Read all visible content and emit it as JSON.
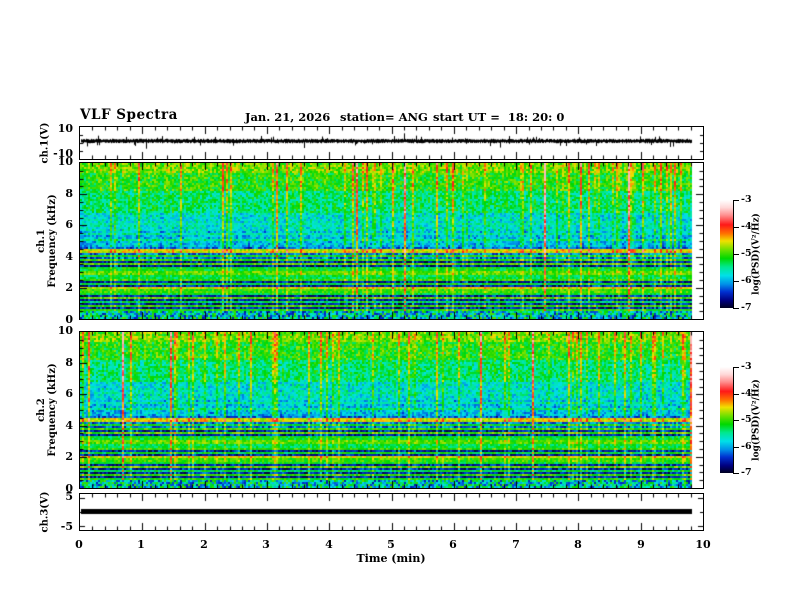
{
  "figure": {
    "title": "VLF Spectra",
    "header": {
      "date": "Jan. 21, 2026",
      "station": "station= ANG",
      "start_ut": "start UT =  18: 20: 0"
    },
    "time_axis": {
      "label": "Time (min)",
      "tick_labels": [
        "0",
        "1",
        "2",
        "3",
        "4",
        "5",
        "6",
        "7",
        "8",
        "9",
        "10"
      ],
      "tick_values": [
        0,
        1,
        2,
        3,
        4,
        5,
        6,
        7,
        8,
        9,
        10
      ]
    },
    "panels": [
      {
        "id": "ch1-voltage",
        "ylabel": "ch.1(V)",
        "ytick_labels": [
          "10",
          "-10"
        ],
        "ytick_values": [
          10,
          -10
        ]
      },
      {
        "id": "ch1-spectrogram",
        "ylabel_lines": [
          "ch.1",
          "Frequency (kHz)"
        ],
        "ytick_labels": [
          "0",
          "2",
          "4",
          "6",
          "8",
          "10"
        ],
        "ytick_values": [
          0,
          2,
          4,
          6,
          8,
          10
        ]
      },
      {
        "id": "ch2-spectrogram",
        "ylabel_lines": [
          "ch.2",
          "Frequency (kHz)"
        ],
        "ytick_labels": [
          "0",
          "2",
          "4",
          "6",
          "8",
          "10"
        ],
        "ytick_values": [
          0,
          2,
          4,
          6,
          8,
          10
        ]
      },
      {
        "id": "ch3-voltage",
        "ylabel": "ch.3(V)",
        "ytick_labels": [
          "5",
          "-5"
        ],
        "ytick_values": [
          5,
          -5
        ]
      }
    ],
    "colorbars": [
      {
        "label": "log(PSD)(V²/Hz)",
        "tick_labels": [
          "-3",
          "-4",
          "-5",
          "-6",
          "-7"
        ],
        "tick_values": [
          -3,
          -4,
          -5,
          -6,
          -7
        ]
      },
      {
        "label": "log(PSD)(V²/Hz)",
        "tick_labels": [
          "-3",
          "-4",
          "-5",
          "-6",
          "-7"
        ],
        "tick_values": [
          -3,
          -4,
          -5,
          -6,
          -7
        ]
      }
    ]
  },
  "colors": {
    "frame": "#000000",
    "background": "#ffffff",
    "trace": "#000000",
    "colormap": [
      [
        0.0,
        "#000020"
      ],
      [
        0.07,
        "#000080"
      ],
      [
        0.15,
        "#0030d0"
      ],
      [
        0.22,
        "#0090e8"
      ],
      [
        0.3,
        "#00e0e8"
      ],
      [
        0.38,
        "#00e890"
      ],
      [
        0.46,
        "#00d800"
      ],
      [
        0.54,
        "#70e000"
      ],
      [
        0.62,
        "#f0e000"
      ],
      [
        0.69,
        "#ff7000"
      ],
      [
        0.77,
        "#ff1818"
      ],
      [
        0.86,
        "#ff9090"
      ],
      [
        0.93,
        "#ffd8d8"
      ],
      [
        1.0,
        "#ffffff"
      ]
    ]
  },
  "chart_data": [
    {
      "type": "line",
      "panel": "ch.1 voltage waveform",
      "x_label": "Time (min)",
      "x_range": [
        0,
        10
      ],
      "data_extent_min": [
        0,
        9.8
      ],
      "y_label": "ch.1(V)",
      "y_range": [
        -10,
        10
      ],
      "description": "Continuous broadband noise centred on 0 V, envelope roughly ±1.5 V, with sparse impulsive spikes reaching about ±6 V over the full 0–9.8 min record."
    },
    {
      "type": "heatmap",
      "panel": "ch.1 VLF spectrogram",
      "x_label": "Time (min)",
      "x_range": [
        0,
        10
      ],
      "data_extent_min": [
        0,
        9.8
      ],
      "y_label": "Frequency (kHz)",
      "y_range": [
        0,
        10
      ],
      "z_label": "log(PSD)(V²/Hz)",
      "z_range": [
        -7,
        -3
      ],
      "seed": 20261,
      "background_bands_logpsd": [
        {
          "f_khz": [
            9.4,
            10.0
          ],
          "level": -5.0
        },
        {
          "f_khz": [
            8.2,
            9.4
          ],
          "level": -5.25
        },
        {
          "f_khz": [
            6.8,
            8.2
          ],
          "level": -5.55
        },
        {
          "f_khz": [
            5.6,
            6.8
          ],
          "level": -5.85
        },
        {
          "f_khz": [
            4.6,
            5.6
          ],
          "level": -6.05
        },
        {
          "f_khz": [
            3.9,
            4.6
          ],
          "level": -6.35
        },
        {
          "f_khz": [
            0.45,
            3.9
          ],
          "level": -6.65
        },
        {
          "f_khz": [
            0.0,
            0.45
          ],
          "level": -5.9
        }
      ],
      "horizontal_lines_logpsd": [
        {
          "f_khz": 0.6,
          "level": -5.2
        },
        {
          "f_khz": 0.8,
          "level": -5.1
        },
        {
          "f_khz": 1.05,
          "level": -5.4
        },
        {
          "f_khz": 1.3,
          "level": -5.0
        },
        {
          "f_khz": 1.55,
          "level": -5.3
        },
        {
          "f_khz": 1.8,
          "level": -5.1
        },
        {
          "f_khz": 2.0,
          "level": -4.7
        },
        {
          "f_khz": 2.2,
          "level": -5.3
        },
        {
          "f_khz": 2.45,
          "level": -5.1
        },
        {
          "f_khz": 2.7,
          "level": -5.4
        },
        {
          "f_khz": 2.95,
          "level": -5.0
        },
        {
          "f_khz": 3.2,
          "level": -5.3
        },
        {
          "f_khz": 3.5,
          "level": -5.0
        },
        {
          "f_khz": 3.8,
          "level": -5.1
        },
        {
          "f_khz": 4.05,
          "level": -5.3
        },
        {
          "f_khz": 4.35,
          "level": -4.7
        },
        {
          "f_khz": 5.05,
          "level": -5.6
        },
        {
          "f_khz": 5.5,
          "level": -5.7
        },
        {
          "f_khz": 6.1,
          "level": -5.8
        }
      ],
      "vertical_streaks": "dense impulsive sferic streaks at all times; strongest reach log PSD ≈ -4 (red) above ~4 kHz; bright noisy band below ~0.45 kHz"
    },
    {
      "type": "heatmap",
      "panel": "ch.2 VLF spectrogram",
      "x_label": "Time (min)",
      "x_range": [
        0,
        10
      ],
      "data_extent_min": [
        0,
        9.8
      ],
      "y_label": "Frequency (kHz)",
      "y_range": [
        0,
        10
      ],
      "z_label": "log(PSD)(V²/Hz)",
      "z_range": [
        -7,
        -3
      ],
      "seed": 20262,
      "background_bands_logpsd": [
        {
          "f_khz": [
            9.4,
            10.0
          ],
          "level": -5.0
        },
        {
          "f_khz": [
            8.2,
            9.4
          ],
          "level": -5.25
        },
        {
          "f_khz": [
            6.8,
            8.2
          ],
          "level": -5.55
        },
        {
          "f_khz": [
            5.6,
            6.8
          ],
          "level": -5.85
        },
        {
          "f_khz": [
            4.6,
            5.6
          ],
          "level": -6.05
        },
        {
          "f_khz": [
            3.9,
            4.6
          ],
          "level": -6.35
        },
        {
          "f_khz": [
            0.45,
            3.9
          ],
          "level": -6.65
        },
        {
          "f_khz": [
            0.0,
            0.45
          ],
          "level": -5.9
        }
      ],
      "horizontal_lines_logpsd": [
        {
          "f_khz": 0.6,
          "level": -5.2
        },
        {
          "f_khz": 0.8,
          "level": -5.1
        },
        {
          "f_khz": 1.05,
          "level": -5.4
        },
        {
          "f_khz": 1.3,
          "level": -5.0
        },
        {
          "f_khz": 1.55,
          "level": -5.3
        },
        {
          "f_khz": 1.8,
          "level": -5.1
        },
        {
          "f_khz": 2.0,
          "level": -4.7
        },
        {
          "f_khz": 2.2,
          "level": -5.3
        },
        {
          "f_khz": 2.45,
          "level": -5.1
        },
        {
          "f_khz": 2.7,
          "level": -5.4
        },
        {
          "f_khz": 2.95,
          "level": -5.0
        },
        {
          "f_khz": 3.2,
          "level": -5.3
        },
        {
          "f_khz": 3.5,
          "level": -5.0
        },
        {
          "f_khz": 3.8,
          "level": -5.1
        },
        {
          "f_khz": 4.05,
          "level": -5.3
        },
        {
          "f_khz": 4.35,
          "level": -4.7
        },
        {
          "f_khz": 5.05,
          "level": -5.6
        },
        {
          "f_khz": 5.5,
          "level": -5.7
        },
        {
          "f_khz": 6.1,
          "level": -5.8
        }
      ],
      "vertical_streaks": "dense impulsive sferic streaks at all times; strongest reach log PSD ≈ -4 (red) above ~4 kHz; bright noisy band below ~0.45 kHz"
    },
    {
      "type": "line",
      "panel": "ch.3 voltage waveform",
      "x_label": "Time (min)",
      "x_range": [
        0,
        10
      ],
      "data_extent_min": [
        0,
        9.8
      ],
      "y_label": "ch.3(V)",
      "y_range": [
        -5,
        5
      ],
      "description": "Flat thick trace pinned at 0 V for the entire record (no signal)."
    }
  ]
}
